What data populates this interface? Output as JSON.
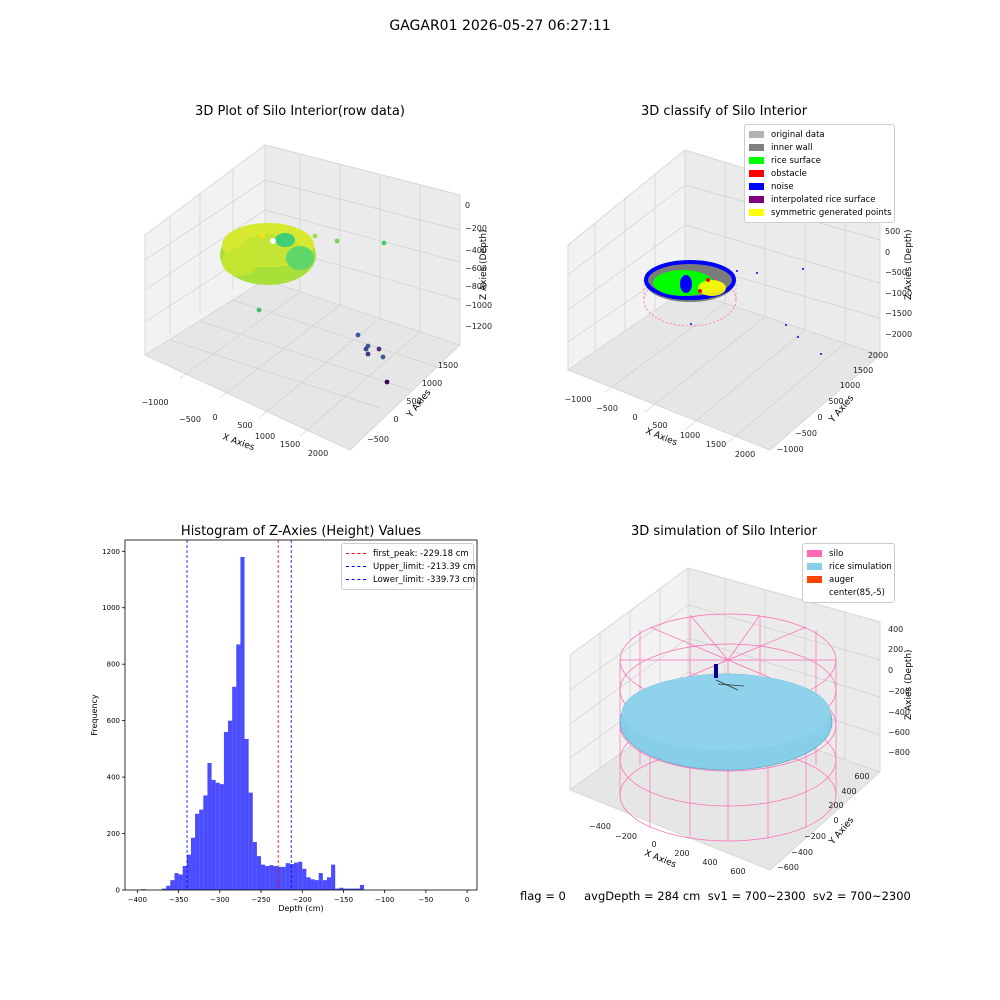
{
  "suptitle": "GAGAR01 2026-05-27 06:27:11",
  "footer": "flag = 0     avgDepth = 284 cm  sv1 = 700~2300  sv2 = 700~2300",
  "colors": {
    "histogram": "#0000ff",
    "first_peak_line": "#ff0000",
    "limit_lines": "#0000ff",
    "silo_wire": "#ff69b4",
    "rice_fill": "#87ceeb",
    "grid_pane": "#f2f2f2"
  },
  "chart_data": [
    {
      "type": "scatter",
      "projection": "3d",
      "title": "3D Plot of Silo Interior(row data)",
      "xlabel": "X Axies",
      "ylabel": "Y Axies",
      "zlabel": "Z Axies (Depth)",
      "xticks": [
        "−1000",
        "−500",
        "0",
        "500",
        "1000",
        "1500",
        "2000"
      ],
      "yticks": [
        "−500",
        "0",
        "500",
        "1000",
        "1500"
      ],
      "zticks": [
        "0",
        "−200",
        "−400",
        "−600",
        "−800",
        "−1000",
        "−1200"
      ],
      "xlim": [
        -1200,
        2200
      ],
      "ylim": [
        -700,
        1700
      ],
      "zlim": [
        -1300,
        50
      ],
      "colormap": "viridis",
      "note_points": "dense ring of points near origin, sparse outliers toward x≈1500–2000"
    },
    {
      "type": "scatter",
      "projection": "3d",
      "title": "3D classify of Silo Interior",
      "xlabel": "X Axies",
      "ylabel": "Y Axies",
      "zlabel": "Z Axies (Depth)",
      "xticks": [
        "−1000",
        "−500",
        "0",
        "500",
        "1000",
        "1500",
        "2000"
      ],
      "yticks": [
        "−1000",
        "−500",
        "0",
        "500",
        "1000",
        "1500",
        "2000"
      ],
      "zticks": [
        "500",
        "0",
        "−500",
        "−1000",
        "−1500",
        "−2000"
      ],
      "xlim": [
        -1200,
        2200
      ],
      "ylim": [
        -1100,
        2100
      ],
      "zlim": [
        -2100,
        700
      ],
      "legend_position": "top-right",
      "legend": [
        {
          "label": "original data",
          "color": "#b3b3b3"
        },
        {
          "label": "inner wall",
          "color": "#808080"
        },
        {
          "label": "rice surface",
          "color": "#00ff00"
        },
        {
          "label": "obstacle",
          "color": "#ff0000"
        },
        {
          "label": "noise",
          "color": "#0000ff"
        },
        {
          "label": "interpolated rice surface",
          "color": "#800080"
        },
        {
          "label": "symmetric generated points",
          "color": "#ffff00"
        }
      ]
    },
    {
      "type": "bar",
      "title": "Histogram of Z-Axies (Height) Values",
      "xlabel": "Depth (cm)",
      "ylabel": "Frequency",
      "xlim": [
        -415,
        12
      ],
      "ylim": [
        0,
        1240
      ],
      "xticks": [
        -400,
        -350,
        -300,
        -250,
        -200,
        -150,
        -100,
        -50,
        0
      ],
      "yticks": [
        0,
        200,
        400,
        600,
        800,
        1000,
        1200
      ],
      "bin_width": 5,
      "bin_start": -395,
      "counts": [
        3,
        0,
        0,
        0,
        0,
        5,
        15,
        35,
        60,
        55,
        85,
        125,
        185,
        270,
        285,
        335,
        450,
        390,
        380,
        375,
        560,
        600,
        720,
        870,
        1180,
        535,
        345,
        170,
        120,
        90,
        85,
        88,
        85,
        82,
        82,
        95,
        92,
        97,
        100,
        75,
        45,
        38,
        35,
        60,
        35,
        45,
        90,
        5,
        8,
        5,
        5,
        5,
        5,
        18
      ],
      "legend_position": "top-right",
      "vlines": [
        {
          "label": "first_peak: -229.18 cm",
          "x": -229.18,
          "color": "#ff0000"
        },
        {
          "label": "Upper_limit: -213.39 cm",
          "x": -213.39,
          "color": "#0000ff"
        },
        {
          "label": "Lower_limit: -339.73 cm",
          "x": -339.73,
          "color": "#0000ff"
        }
      ]
    },
    {
      "type": "area",
      "projection": "3d",
      "title": "3D simulation of Silo Interior",
      "xlabel": "X Axies",
      "ylabel": "Y Axies",
      "zlabel": "Z Axies (Depth)",
      "xticks": [
        "−400",
        "−200",
        "0",
        "200",
        "400",
        "600"
      ],
      "yticks": [
        "−600",
        "−400",
        "−200",
        "0",
        "200",
        "400",
        "600"
      ],
      "zticks": [
        "400",
        "200",
        "0",
        "−200",
        "−400",
        "−600",
        "−800"
      ],
      "xlim": [
        -550,
        750
      ],
      "ylim": [
        -700,
        700
      ],
      "zlim": [
        -900,
        450
      ],
      "legend_position": "top-right",
      "legend": [
        {
          "label": "silo",
          "color": "#ff69b4"
        },
        {
          "label": "rice simulation",
          "color": "#87ceeb"
        },
        {
          "label": "auger",
          "color": "#ff4500"
        },
        {
          "label": "center(85,-5)",
          "color": ""
        }
      ]
    }
  ]
}
